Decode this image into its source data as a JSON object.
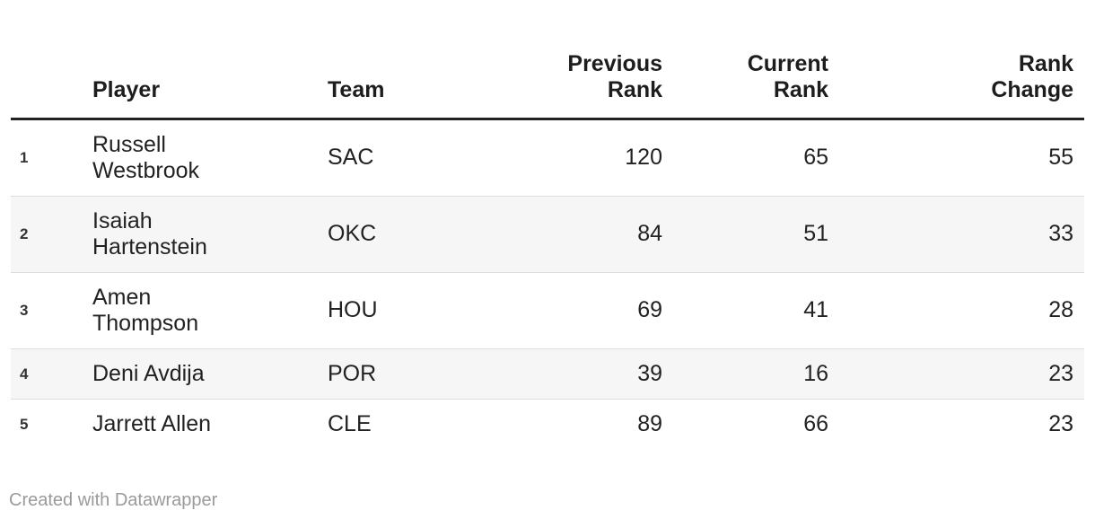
{
  "chart_data": {
    "type": "table",
    "columns": [
      "",
      "Player",
      "Team",
      "Previous Rank",
      "Current Rank",
      "Rank Change"
    ],
    "rows": [
      [
        "1",
        "Russell Westbrook",
        "SAC",
        120,
        65,
        55
      ],
      [
        "2",
        "Isaiah Hartenstein",
        "OKC",
        84,
        51,
        33
      ],
      [
        "3",
        "Amen Thompson",
        "HOU",
        69,
        41,
        28
      ],
      [
        "4",
        "Deni Avdija",
        "POR",
        39,
        16,
        23
      ],
      [
        "5",
        "Jarrett Allen",
        "CLE",
        89,
        66,
        23
      ]
    ],
    "title": "",
    "legend_position": "none",
    "grid": "row-separators-and-zebra-stripes"
  },
  "footer": {
    "attribution": "Created with Datawrapper"
  },
  "colors": {
    "background": "#ffffff",
    "text": "#222222",
    "header_rule": "#222222",
    "row_separator": "#dddddd",
    "row_stripe": "#f6f6f6",
    "attribution_text": "#9a9a9a"
  }
}
